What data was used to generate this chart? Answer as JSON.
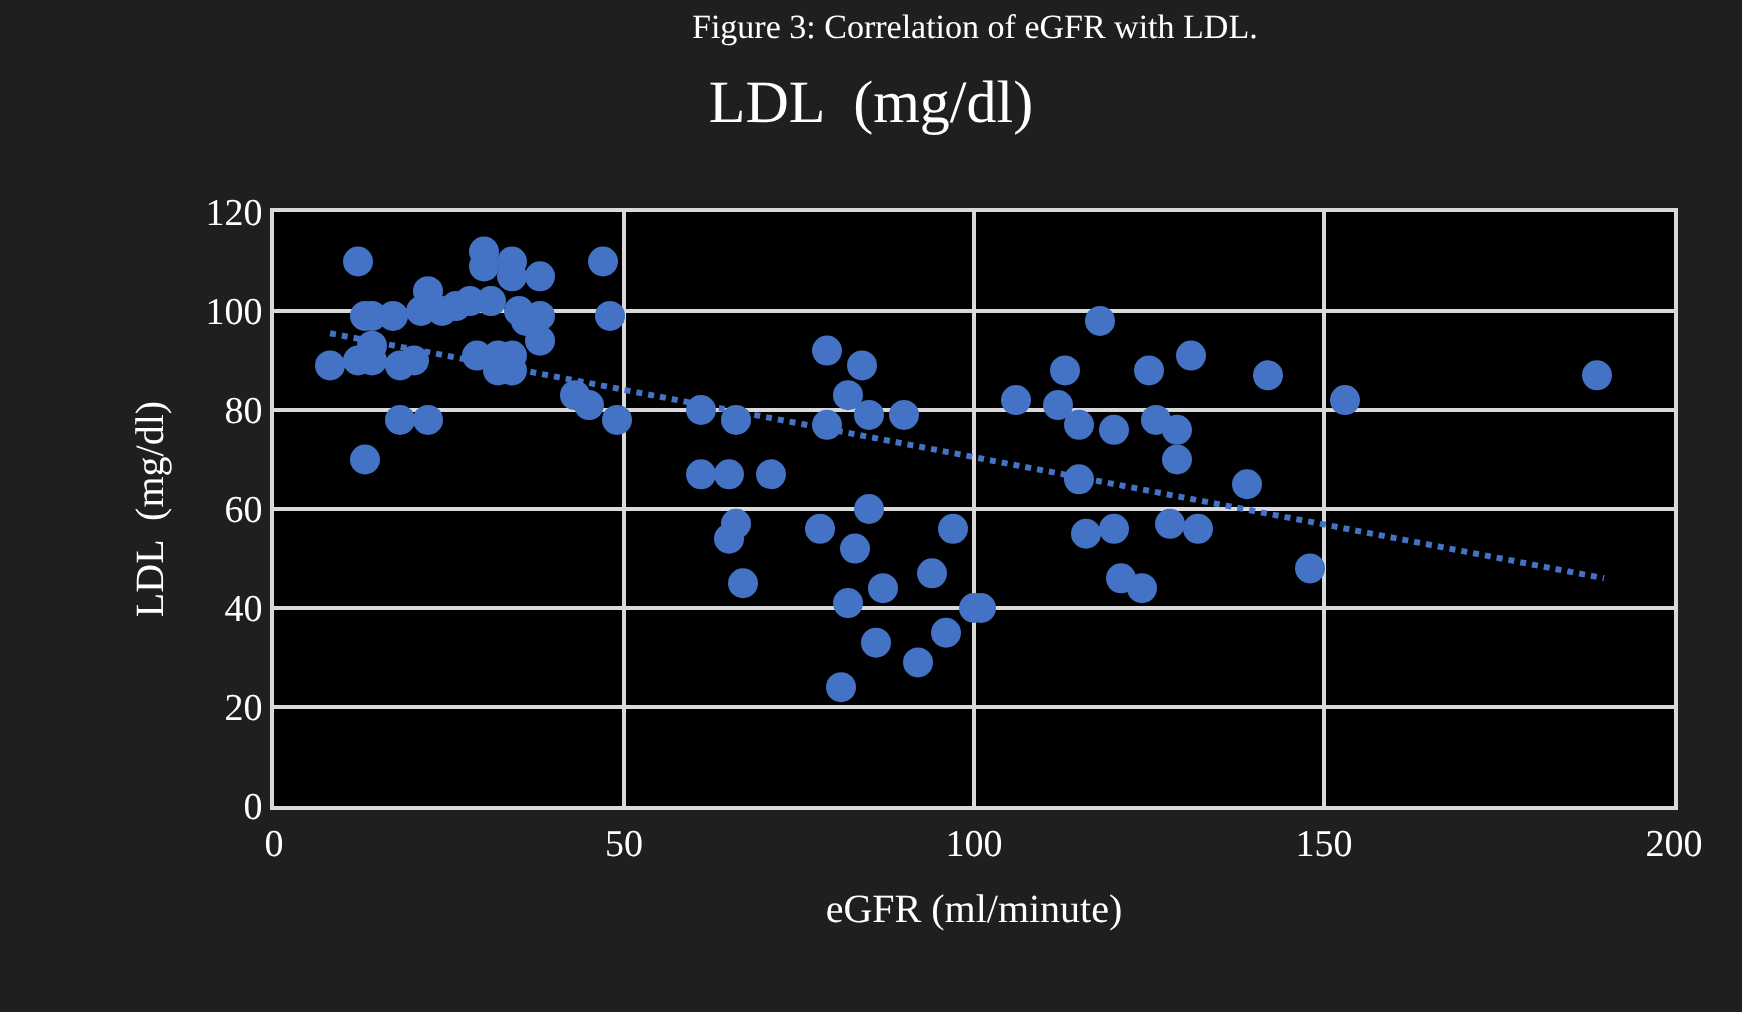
{
  "chart_data": {
    "type": "scatter",
    "title": "LDL  (mg/dl)",
    "xlabel": "eGFR (ml/minute)",
    "ylabel": "LDL  (mg/dl)",
    "annotations": [
      "Figure 3: Correlation of eGFR with LDL."
    ],
    "xlim": [
      0,
      200
    ],
    "xticks": [
      0,
      50,
      100,
      150,
      200
    ],
    "ylim": [
      0,
      120
    ],
    "yticks": [
      0,
      20,
      40,
      60,
      80,
      100,
      120
    ],
    "grid": true,
    "series": [
      {
        "color": "#4472c4",
        "marker": "circle",
        "x": [
          8,
          12,
          12,
          13,
          13,
          14,
          14,
          14,
          17,
          18,
          18,
          20,
          22,
          22,
          21,
          24,
          26,
          28,
          30,
          30,
          34,
          34,
          29,
          32,
          32,
          34,
          34,
          31,
          35,
          36,
          38,
          38,
          38,
          43,
          45,
          47,
          48,
          49,
          61,
          66,
          61,
          65,
          71,
          66,
          65,
          67,
          79,
          84,
          82,
          85,
          79,
          90,
          85,
          78,
          83,
          97,
          94,
          87,
          82,
          100,
          86,
          96,
          92,
          81,
          118,
          113,
          125,
          131,
          142,
          153,
          106,
          112,
          115,
          120,
          126,
          129,
          129,
          115,
          139,
          116,
          120,
          128,
          132,
          121,
          124,
          148,
          101,
          189
        ],
        "values": [
          89,
          110,
          90,
          70,
          99,
          99,
          93,
          90,
          99,
          89,
          78,
          90,
          78,
          104,
          100,
          100,
          101,
          102,
          112,
          109,
          110,
          107,
          91,
          91,
          88,
          88,
          91,
          102,
          100,
          98,
          99,
          94,
          107,
          83,
          81,
          110,
          99,
          78,
          80,
          78,
          67,
          67,
          67,
          57,
          54,
          45,
          92,
          89,
          83,
          79,
          77,
          79,
          60,
          56,
          52,
          56,
          47,
          44,
          41,
          40,
          33,
          35,
          29,
          24,
          98,
          88,
          88,
          91,
          87,
          82,
          82,
          81,
          77,
          76,
          78,
          76,
          70,
          66,
          65,
          55,
          56,
          57,
          56,
          46,
          44,
          48,
          40,
          87
        ]
      },
      {
        "type": "line",
        "color": "#4472c4",
        "line_style": "dotted",
        "marker": "none",
        "x": [
          8,
          190
        ],
        "values": [
          95.5,
          46
        ]
      }
    ]
  }
}
